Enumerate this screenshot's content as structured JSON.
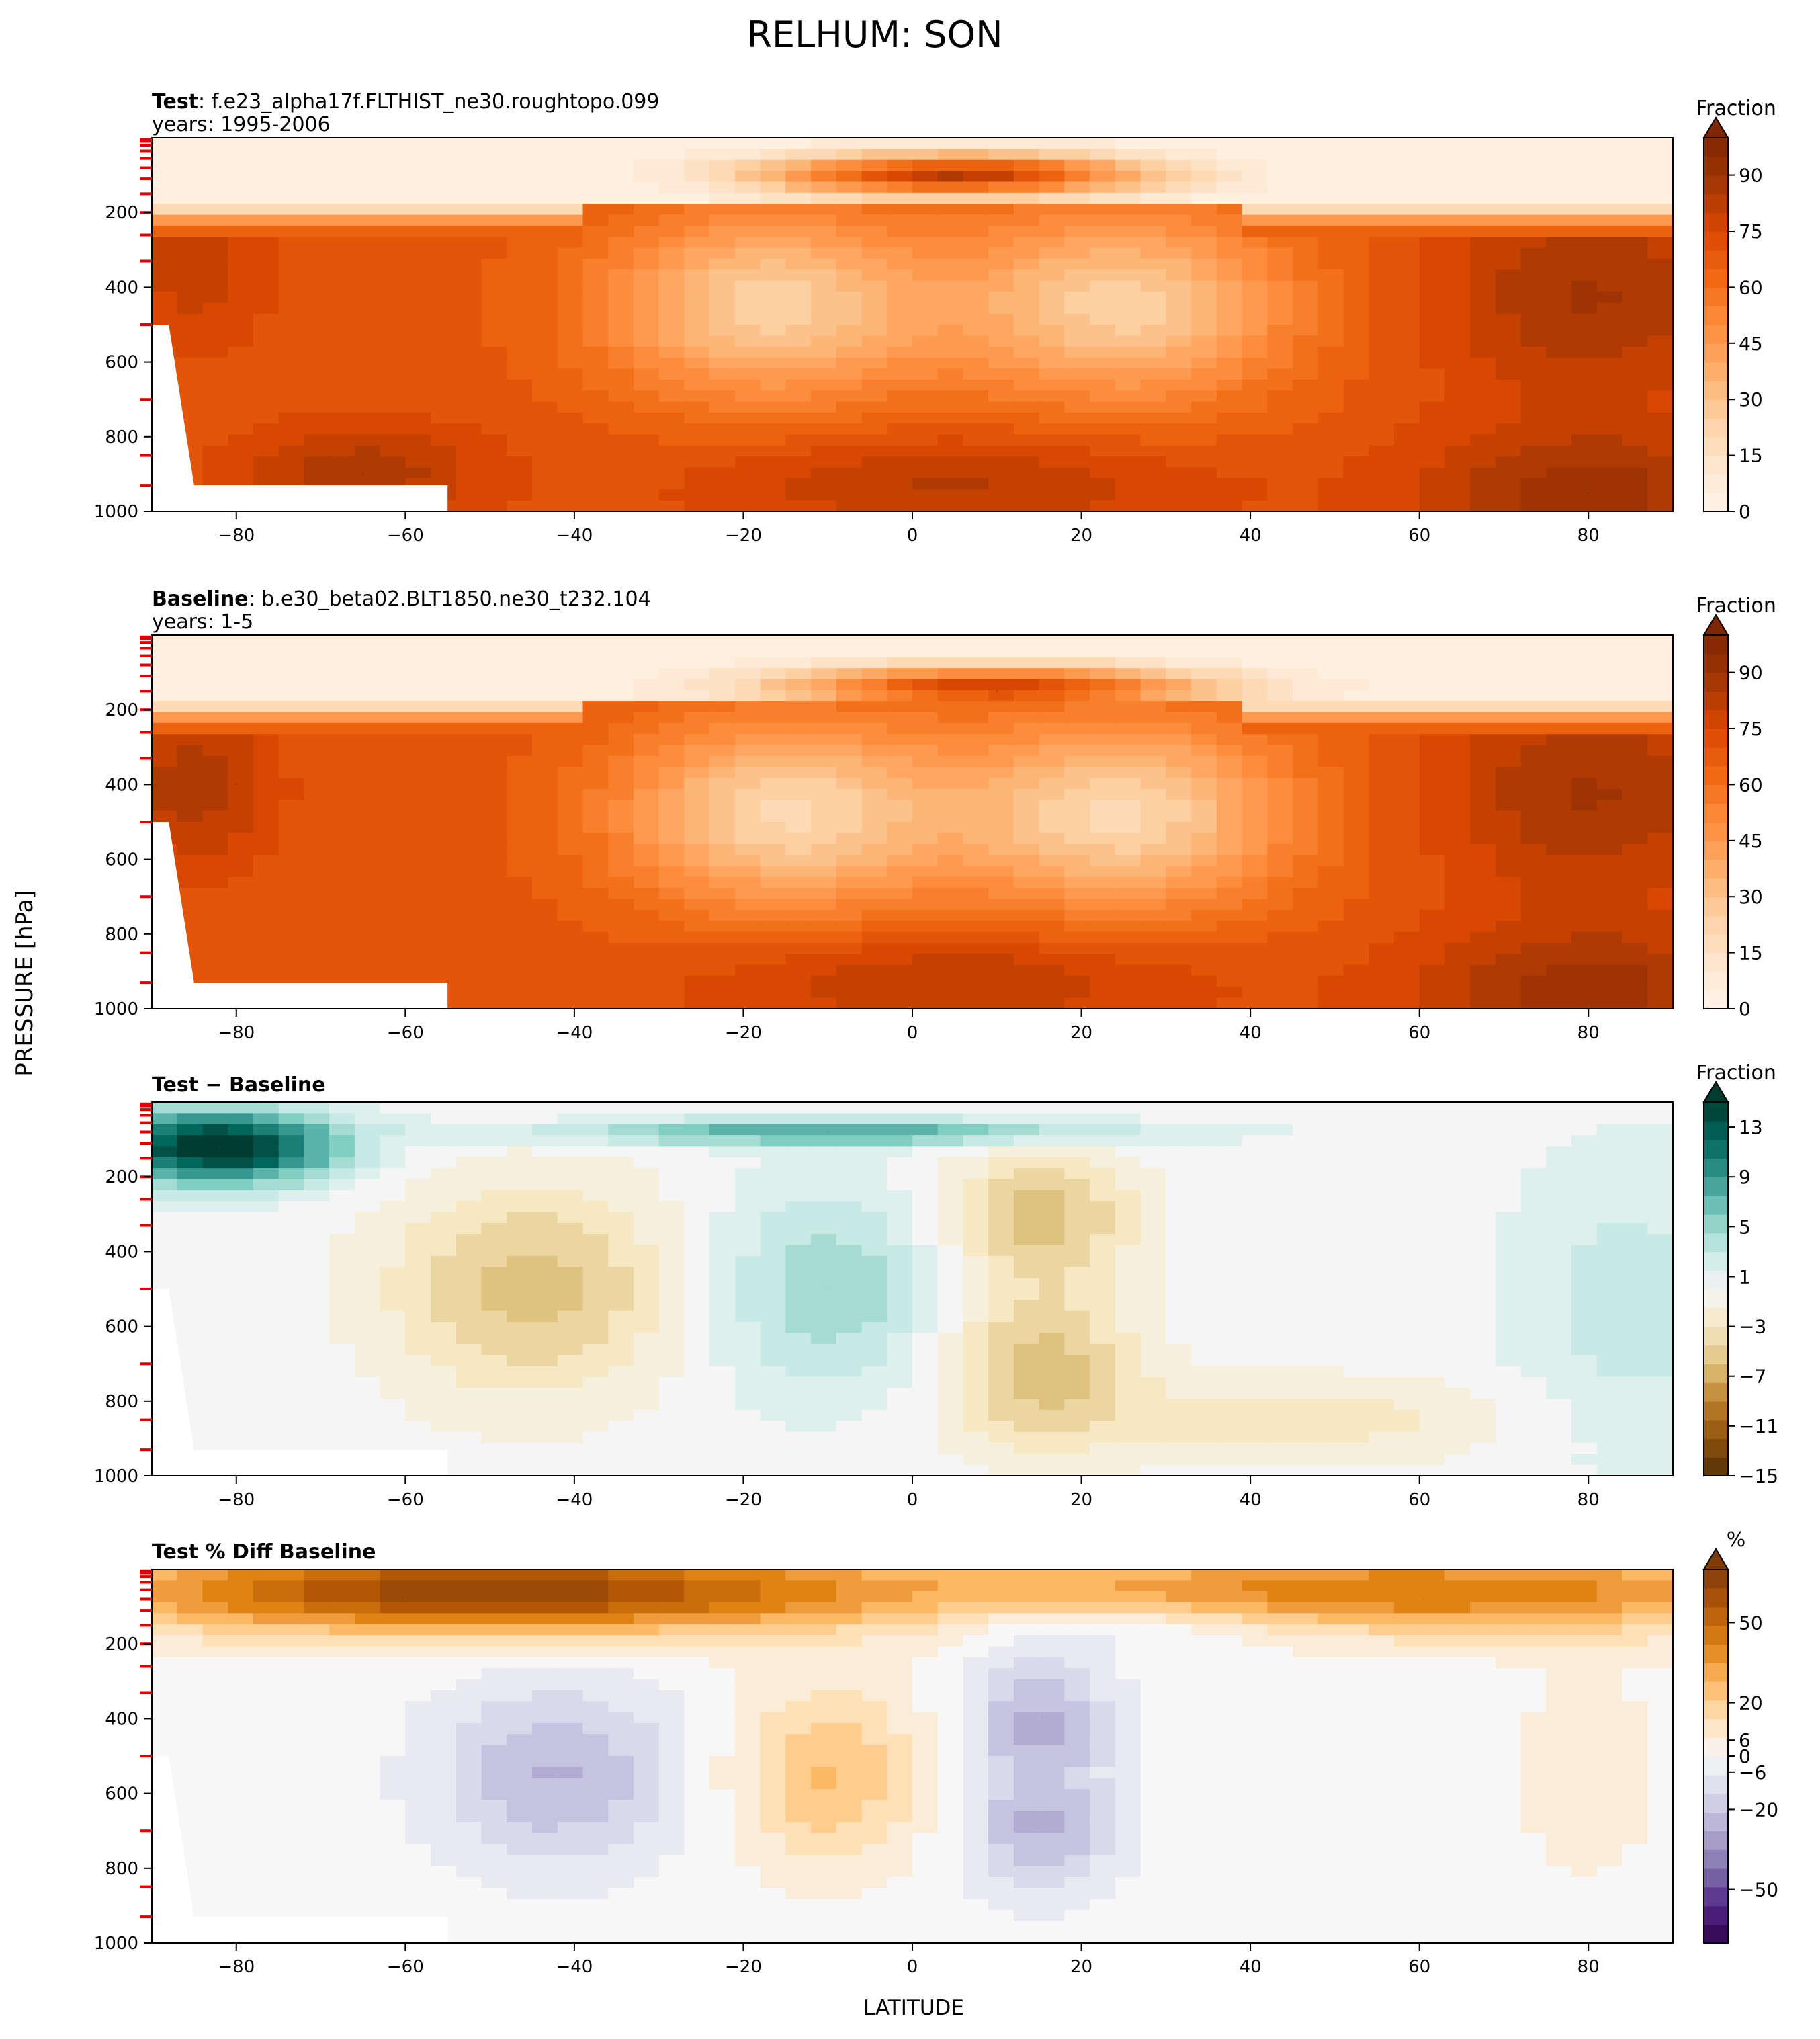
{
  "title": "RELHUM: SON",
  "ylabel": "PRESSURE [hPa]",
  "xlabel": "LATITUDE",
  "chart_data": [
    {
      "type": "heatmap",
      "title_bold": "Test",
      "title_rest": ": f.e23_alpha17f.FLTHIST_ne30.roughtopo.099",
      "subtitle": "years: 1995-2006",
      "xlim": [
        -90,
        90
      ],
      "ylim": [
        1000,
        0
      ],
      "xticks": [
        -80,
        -60,
        -40,
        -20,
        0,
        20,
        40,
        60,
        80
      ],
      "yticks": [
        200,
        400,
        600,
        800,
        1000
      ],
      "colorbar_label": "Fraction",
      "colorbar_ticks": [
        0,
        15,
        30,
        45,
        60,
        75,
        90
      ],
      "colorbar_range": [
        0,
        100
      ],
      "colors": [
        "#fff5eb",
        "#fee6ce",
        "#fdd0a2",
        "#fdae6b",
        "#fd8d3c",
        "#f16913",
        "#d94801",
        "#a63603",
        "#7f2704"
      ],
      "features": [
        {
          "lat": -15,
          "p": 450,
          "value": 25
        },
        {
          "lat": 25,
          "p": 450,
          "value": 25
        },
        {
          "lat": 5,
          "p": 100,
          "value": 85
        },
        {
          "lat": -65,
          "p": 900,
          "value": 88
        },
        {
          "lat": 80,
          "p": 400,
          "value": 88
        },
        {
          "lat": 80,
          "p": 950,
          "value": 95
        }
      ]
    },
    {
      "type": "heatmap",
      "title_bold": "Baseline",
      "title_rest": ": b.e30_beta02.BLT1850.ne30_t232.104",
      "subtitle": "years: 1-5",
      "xlim": [
        -90,
        90
      ],
      "ylim": [
        1000,
        0
      ],
      "xticks": [
        -80,
        -60,
        -40,
        -20,
        0,
        20,
        40,
        60,
        80
      ],
      "yticks": [
        200,
        400,
        600,
        800,
        1000
      ],
      "colorbar_label": "Fraction",
      "colorbar_ticks": [
        0,
        15,
        30,
        45,
        60,
        75,
        90
      ],
      "colorbar_range": [
        0,
        100
      ],
      "colors": [
        "#fff5eb",
        "#fee6ce",
        "#fdd0a2",
        "#fdae6b",
        "#fd8d3c",
        "#f16913",
        "#d94801",
        "#a63603",
        "#7f2704"
      ],
      "features": [
        {
          "lat": -15,
          "p": 480,
          "value": 22
        },
        {
          "lat": 25,
          "p": 480,
          "value": 22
        },
        {
          "lat": 10,
          "p": 150,
          "value": 80
        },
        {
          "lat": -80,
          "p": 400,
          "value": 88
        },
        {
          "lat": 80,
          "p": 400,
          "value": 88
        },
        {
          "lat": 80,
          "p": 950,
          "value": 92
        }
      ]
    },
    {
      "type": "heatmap",
      "title_bold": "Test − Baseline",
      "title_rest": "",
      "subtitle": "",
      "xlim": [
        -90,
        90
      ],
      "ylim": [
        1000,
        0
      ],
      "xticks": [
        -80,
        -60,
        -40,
        -20,
        0,
        20,
        40,
        60,
        80
      ],
      "yticks": [
        200,
        400,
        600,
        800,
        1000
      ],
      "colorbar_label": "Fraction",
      "colorbar_ticks": [
        -15,
        -11,
        -7,
        -3,
        1,
        5,
        9,
        13
      ],
      "colorbar_range": [
        -15,
        15
      ],
      "colors": [
        "#543005",
        "#8c510a",
        "#bf812d",
        "#dfc27d",
        "#f6e8c3",
        "#f5f5f5",
        "#c7eae5",
        "#80cdc1",
        "#35978f",
        "#01665e",
        "#003c30"
      ],
      "features": [
        {
          "lat": -82,
          "p": 120,
          "value": 14
        },
        {
          "lat": -10,
          "p": 80,
          "value": 8
        },
        {
          "lat": -45,
          "p": 500,
          "value": -6
        },
        {
          "lat": 15,
          "p": 300,
          "value": -6
        },
        {
          "lat": 15,
          "p": 700,
          "value": -6
        },
        {
          "lat": -10,
          "p": 500,
          "value": 5
        },
        {
          "lat": 85,
          "p": 500,
          "value": 3
        }
      ]
    },
    {
      "type": "heatmap",
      "title_bold": "Test % Diff Baseline",
      "title_rest": "",
      "subtitle": "",
      "xlim": [
        -90,
        90
      ],
      "ylim": [
        1000,
        0
      ],
      "xticks": [
        -80,
        -60,
        -40,
        -20,
        0,
        20,
        40,
        60,
        80
      ],
      "yticks": [
        200,
        400,
        600,
        800,
        1000
      ],
      "colorbar_label": "%",
      "colorbar_ticks": [
        -50,
        -20,
        -6,
        0,
        6,
        20,
        50
      ],
      "colorbar_range": [
        -70,
        70
      ],
      "colors": [
        "#2d004b",
        "#542788",
        "#8073ac",
        "#b2abd2",
        "#d8daeb",
        "#f7f7f7",
        "#fee0b6",
        "#fdb863",
        "#e08214",
        "#b35806",
        "#7f3b08"
      ],
      "features": [
        {
          "lat": -60,
          "p": 80,
          "value": 60
        },
        {
          "lat": 60,
          "p": 80,
          "value": 40
        },
        {
          "lat": -10,
          "p": 550,
          "value": 25
        },
        {
          "lat": -42,
          "p": 550,
          "value": -25
        },
        {
          "lat": 15,
          "p": 400,
          "value": -25
        },
        {
          "lat": 15,
          "p": 700,
          "value": -25
        },
        {
          "lat": 80,
          "p": 550,
          "value": 6
        }
      ]
    }
  ]
}
